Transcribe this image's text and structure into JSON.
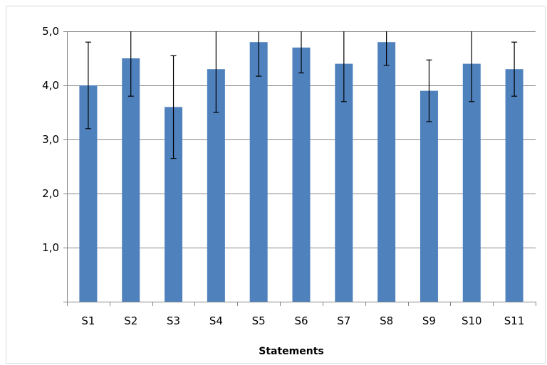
{
  "chart_data": {
    "type": "bar",
    "categories": [
      "S1",
      "S2",
      "S3",
      "S4",
      "S5",
      "S6",
      "S7",
      "S8",
      "S9",
      "S10",
      "S11"
    ],
    "values": [
      4.0,
      4.5,
      3.6,
      4.3,
      4.8,
      4.7,
      4.4,
      4.8,
      3.9,
      4.4,
      4.3
    ],
    "error": [
      0.8,
      0.7,
      0.95,
      0.8,
      0.63,
      0.47,
      0.7,
      0.43,
      0.57,
      0.7,
      0.5
    ],
    "title": "",
    "xlabel": "Statements",
    "ylabel": "",
    "ylim": [
      0,
      5
    ],
    "yticks": [
      0,
      1,
      2,
      3,
      4,
      5
    ],
    "ytick_labels": [
      "",
      "1,0",
      "2,0",
      "3,0",
      "4,0",
      "5,0"
    ],
    "grid": true,
    "legend": "none",
    "bar_color": "#4f81bd",
    "gridline_color": "#868686",
    "errorbar_color": "#000000"
  }
}
